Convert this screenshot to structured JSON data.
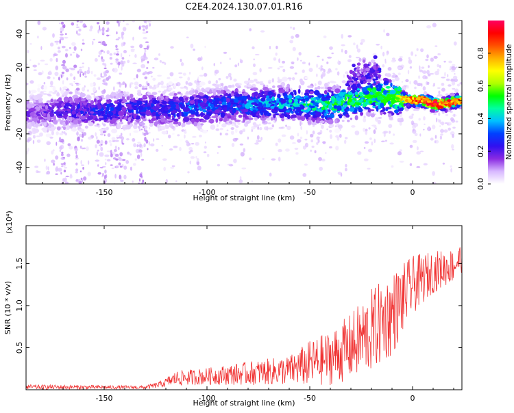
{
  "title": "C2E4.2024.130.07.01.R16",
  "chart_data": [
    {
      "type": "heatmap",
      "xlabel": "Height of straight line (km)",
      "ylabel": "Frequency (Hz)",
      "xlim": [
        -188,
        24
      ],
      "ylim": [
        -50,
        48
      ],
      "xticks": [
        -150,
        -100,
        -50,
        0
      ],
      "yticks": [
        -40,
        -20,
        0,
        20,
        40
      ],
      "ridge": {
        "x": [
          -188,
          -170,
          -150,
          -130,
          -110,
          -90,
          -70,
          -55,
          -40,
          -30,
          -20,
          -10,
          0,
          5,
          10,
          15,
          24
        ],
        "y": [
          -8,
          -6,
          -6,
          -5,
          -5,
          -3,
          -2,
          -2,
          -3,
          0,
          3,
          2,
          0,
          0,
          -2,
          -2,
          0
        ],
        "amplitude": [
          0.15,
          0.2,
          0.25,
          0.25,
          0.3,
          0.3,
          0.35,
          0.4,
          0.45,
          0.5,
          0.55,
          0.6,
          0.85,
          0.9,
          0.95,
          0.9,
          0.85
        ]
      },
      "colorbar": {
        "label": "Normalized spectral amplitude",
        "ticks": [
          0.0,
          0.2,
          0.4,
          0.6,
          0.8
        ],
        "colors": [
          "#ffffff",
          "#d8b8ff",
          "#8a2be2",
          "#3010f0",
          "#0040ff",
          "#00c0ff",
          "#00ffa0",
          "#00ff00",
          "#b0ff00",
          "#ffff00",
          "#ffb000",
          "#ff5000",
          "#ff0000",
          "#ff0060"
        ]
      }
    },
    {
      "type": "line",
      "xlabel": "Height of straight line (km)",
      "ylabel": "SNR (10 * v/v)",
      "yscale_label": "(x10⁴)",
      "xlim": [
        -188,
        24
      ],
      "ylim": [
        0,
        1.95
      ],
      "xticks": [
        -150,
        -100,
        -50,
        0
      ],
      "yticks": [
        0.5,
        1.0,
        1.5
      ],
      "ytick_labels": [
        "0.5",
        "1.0",
        "1.5"
      ],
      "color": "#f03030",
      "envelope": {
        "x": [
          -188,
          -160,
          -130,
          -122,
          -115,
          -100,
          -80,
          -60,
          -50,
          -40,
          -30,
          -20,
          -10,
          0,
          10,
          20,
          24
        ],
        "base": [
          0.02,
          0.02,
          0.02,
          0.05,
          0.1,
          0.12,
          0.14,
          0.16,
          0.2,
          0.25,
          0.35,
          0.5,
          0.7,
          1.1,
          1.3,
          1.4,
          1.5
        ],
        "amp": [
          0.06,
          0.05,
          0.04,
          0.08,
          0.18,
          0.2,
          0.28,
          0.35,
          0.55,
          0.65,
          0.8,
          1.0,
          1.0,
          0.7,
          0.5,
          0.4,
          0.35
        ]
      }
    }
  ]
}
